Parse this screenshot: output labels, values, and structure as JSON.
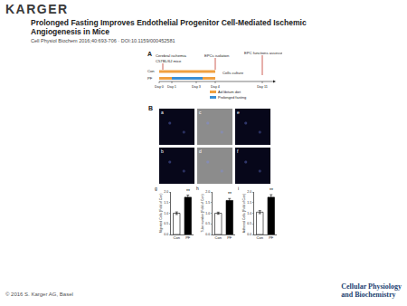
{
  "header": {
    "logo": "KARGER",
    "title": "Prolonged Fasting Improves Endothelial Progenitor Cell-Mediated Ischemic Angiogenesis in Mice",
    "citation": "Cell Physiol Biochem 2016;40:693-706 · DOI:10.1159/000452581"
  },
  "panel_a": {
    "label": "A",
    "ischemia": "Cerebral ischemia",
    "mice": "C57BL/6J mice",
    "isolation": "EPCs isolation",
    "culture": "Cells culture",
    "assessment": "EPC functions assessment",
    "groups": [
      "Con",
      "PF"
    ],
    "days": [
      "Day 0",
      "Day 1",
      "Day 3",
      "Day 4",
      "Day 11"
    ],
    "legend": [
      {
        "text": "Ad libitum diet",
        "color": "#f0a040"
      },
      {
        "text": "Prolonged fasting",
        "color": "#3a8fd6"
      }
    ]
  },
  "panel_b": {
    "label": "B",
    "images": [
      {
        "label": "a",
        "color": "#07071a"
      },
      {
        "label": "b",
        "color": "#07071a"
      },
      {
        "label": "c",
        "color": "#8c8c8c"
      },
      {
        "label": "d",
        "color": "#8c8c8c"
      },
      {
        "label": "e",
        "color": "#07071a"
      },
      {
        "label": "f",
        "color": "#07071a"
      }
    ]
  },
  "chart_data": [
    {
      "type": "bar",
      "title": "g",
      "y_label": "Migrated Cells (Fold of Con)",
      "categories": [
        "Con",
        "PF"
      ],
      "values": [
        1.0,
        1.75
      ],
      "errors": [
        0.06,
        0.1
      ],
      "colors": [
        "#ffffff",
        "#000000"
      ],
      "ylim": [
        0,
        2.0
      ],
      "yticks": [
        {
          "value": 0,
          "label": "0.0"
        },
        {
          "value": 0.5,
          "label": "0.5"
        },
        {
          "value": 1,
          "label": "1.0"
        },
        {
          "value": 1.5,
          "label": "1.5"
        },
        {
          "value": 2,
          "label": "2.0"
        }
      ],
      "annotations": [
        {
          "x": "PF",
          "text": "**"
        }
      ]
    },
    {
      "type": "bar",
      "title": "h",
      "y_label": "Tube number (Fold of Con)",
      "categories": [
        "Con",
        "PF"
      ],
      "values": [
        1.0,
        1.6
      ],
      "errors": [
        0.05,
        0.09
      ],
      "colors": [
        "#ffffff",
        "#000000"
      ],
      "ylim": [
        0,
        2.0
      ],
      "yticks": [
        {
          "value": 0,
          "label": "0.0"
        },
        {
          "value": 0.5,
          "label": "0.5"
        },
        {
          "value": 1,
          "label": "1.0"
        },
        {
          "value": 1.5,
          "label": "1.5"
        },
        {
          "value": 2,
          "label": "2.0"
        }
      ],
      "annotations": [
        {
          "x": "PF",
          "text": "**"
        }
      ]
    },
    {
      "type": "bar",
      "title": "i",
      "y_label": "Adhered Cells (Fold of Con)",
      "categories": [
        "Con",
        "PF"
      ],
      "values": [
        1.05,
        1.75
      ],
      "errors": [
        0.07,
        0.12
      ],
      "colors": [
        "#ffffff",
        "#000000"
      ],
      "ylim": [
        0,
        2.0
      ],
      "yticks": [
        {
          "value": 0,
          "label": "0.0"
        },
        {
          "value": 0.5,
          "label": "0.5"
        },
        {
          "value": 1,
          "label": "1.0"
        },
        {
          "value": 1.5,
          "label": "1.5"
        },
        {
          "value": 2,
          "label": "2.0"
        }
      ],
      "annotations": [
        {
          "x": "PF",
          "text": "**"
        }
      ]
    }
  ],
  "footer": {
    "copyright": "© 2016 S. Karger AG, Basel",
    "journal": [
      "Cellular Physiology",
      "and Biochemistry"
    ]
  }
}
